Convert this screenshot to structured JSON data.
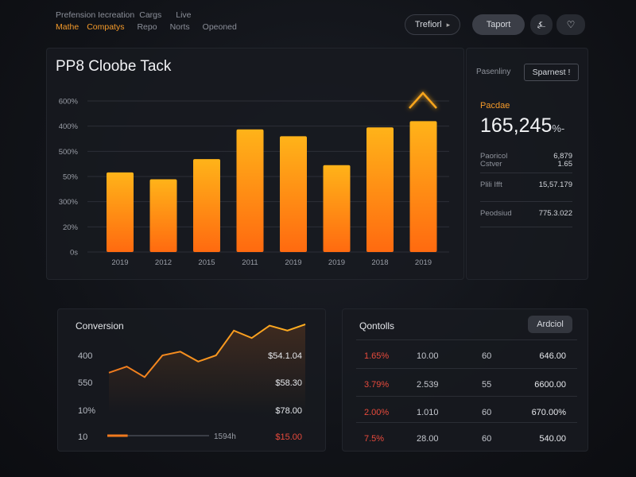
{
  "nav": {
    "top": [
      "Prefension Iecreation",
      "Cargs",
      "Live"
    ],
    "bottom": [
      {
        "label": "Mathe",
        "active": true
      },
      {
        "label": "Compatys",
        "active": true
      },
      {
        "label": "Repo",
        "active": false
      },
      {
        "label": "Norts",
        "active": false
      },
      {
        "label": "Opeoned",
        "active": false
      }
    ]
  },
  "toolbar": {
    "filter_label": "Trefiorl",
    "filter_icon": "▸",
    "export_label": "Taport",
    "icon1": "⍼",
    "icon2": "♡"
  },
  "main": {
    "title": "PP8 Cloobe Tack"
  },
  "chart_data": {
    "type": "bar",
    "title": "PP8 Cloobe Tack",
    "categories": [
      "2019",
      "2012",
      "2015",
      "2011",
      "2019",
      "2019",
      "2018",
      "2019"
    ],
    "values": [
      316,
      289,
      369,
      487,
      460,
      345,
      495,
      520
    ],
    "y_tick_labels": [
      "0s",
      "20%",
      "300%",
      "50%",
      "500%",
      "400%",
      "600%"
    ],
    "ylim": [
      0,
      600
    ],
    "grid": true,
    "colors": {
      "bar_top": "#ffb319",
      "bar_bottom": "#ff6a10",
      "marker": "#f7a51c"
    }
  },
  "side": {
    "label": "Pasenliny",
    "button": "Sparnest !",
    "kpi_label": "Pacdae",
    "kpi_value": "165,245",
    "kpi_unit": "%-",
    "stats": [
      {
        "label": "Paoricol Cstver",
        "value": "6,879 1.65"
      },
      {
        "label": "Plili Ifft",
        "value": "15,57.179"
      },
      {
        "label": "Peodsiud",
        "value": "775.3.022"
      }
    ]
  },
  "conversion": {
    "title": "Conversion",
    "rows": [
      {
        "label": "400",
        "value": "$54.1.04",
        "red": false
      },
      {
        "label": "550",
        "value": "$58.30",
        "red": false
      },
      {
        "label": "10%",
        "value": "$78.00",
        "red": false
      },
      {
        "label": "10",
        "value": "$15.00",
        "red": true
      }
    ],
    "progress_label": "1594h",
    "progress": 0.2,
    "line_series": [
      0.22,
      0.32,
      0.15,
      0.5,
      0.56,
      0.4,
      0.5,
      0.9,
      0.78,
      0.98,
      0.9,
      1.0
    ]
  },
  "controls": {
    "title": "Qontolls",
    "button": "Ardciol",
    "rows": [
      [
        "1.65%",
        "10.00",
        "60",
        "646.00"
      ],
      [
        "3.79%",
        "2.539",
        "55",
        "6600.00"
      ],
      [
        "2.00%",
        "1.010",
        "60",
        "670.00%"
      ],
      [
        "7.5%",
        "28.00",
        "60",
        "540.00"
      ]
    ]
  }
}
